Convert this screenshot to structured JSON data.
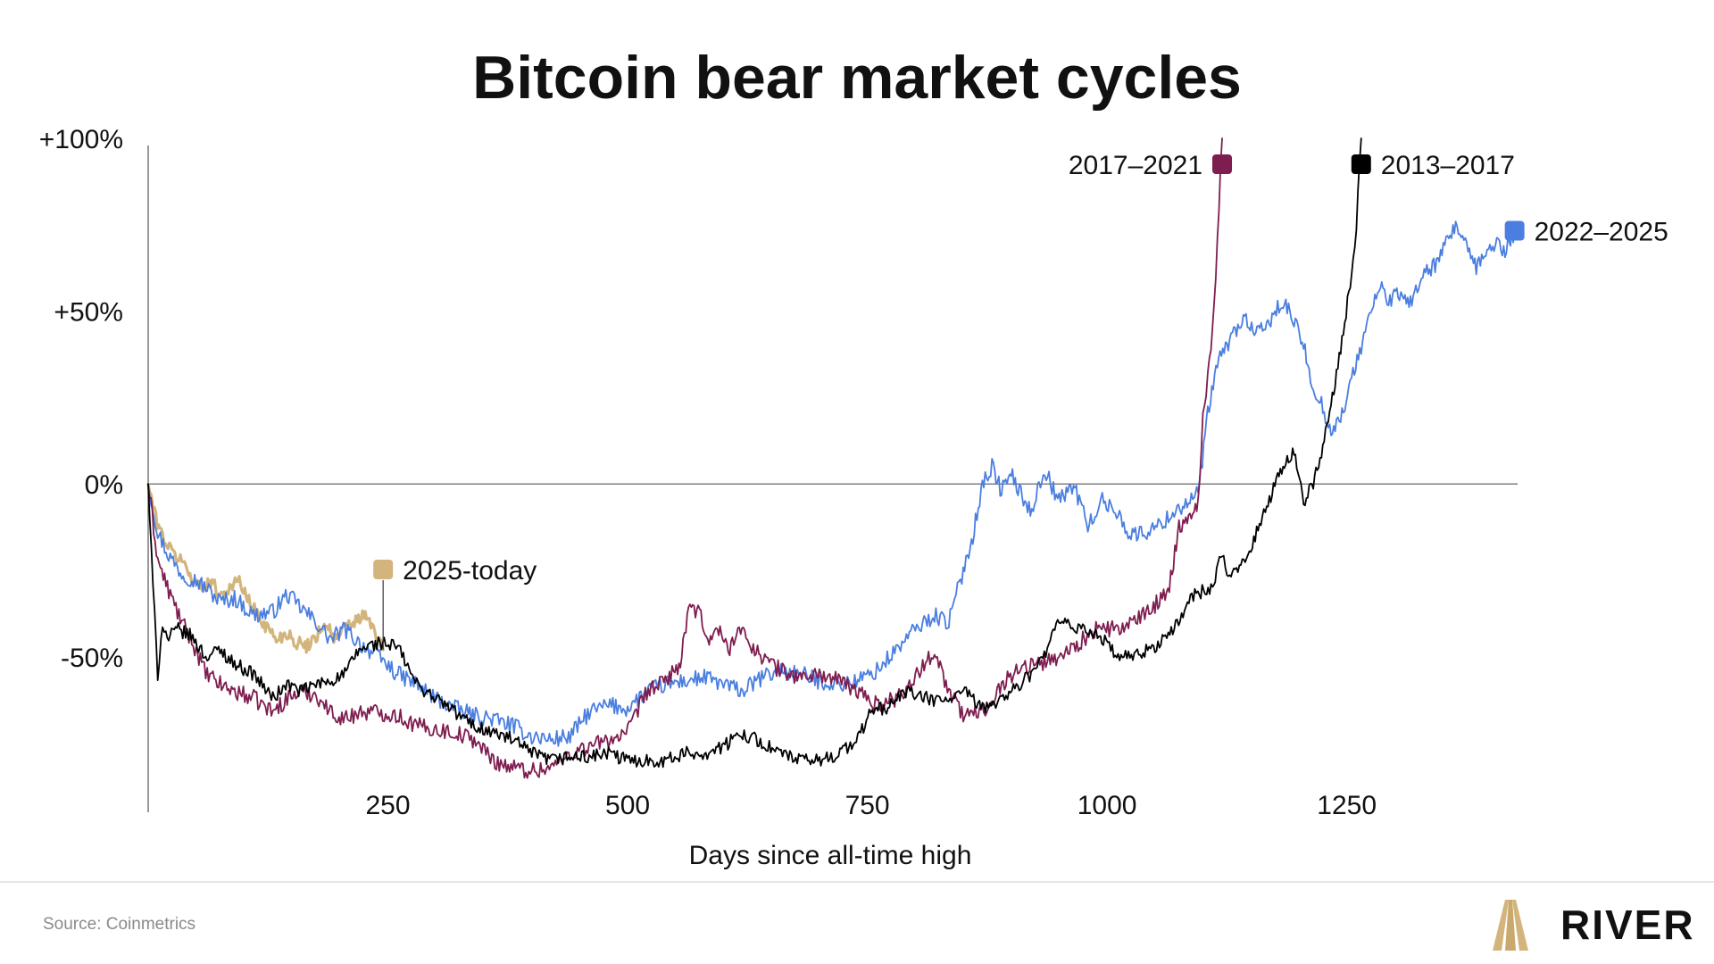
{
  "title": "Bitcoin bear market cycles",
  "source": "Source: Coinmetrics",
  "brand": {
    "name": "RIVER",
    "icon": "river-logo-icon",
    "color": "#d2b47c"
  },
  "chart_data": {
    "type": "line",
    "title": "Bitcoin bear market cycles",
    "xlabel": "Days since all-time high",
    "ylabel": "",
    "xlim": [
      0,
      1430
    ],
    "ylim": [
      -95,
      100
    ],
    "x_ticks": [
      {
        "value": 250,
        "label": "250"
      },
      {
        "value": 500,
        "label": "500"
      },
      {
        "value": 750,
        "label": "750"
      },
      {
        "value": 1000,
        "label": "1000"
      },
      {
        "value": 1250,
        "label": "1250"
      }
    ],
    "y_ticks": [
      {
        "value": 100,
        "label": "+100%"
      },
      {
        "value": 50,
        "label": "+50%"
      },
      {
        "value": 0,
        "label": "0%"
      },
      {
        "value": -50,
        "label": "-50%"
      }
    ],
    "zero_line": true,
    "grid": false,
    "legend": "direct labels at line ends",
    "series": [
      {
        "name": "2022–2025",
        "color": "#4a7ee0",
        "x": [
          0,
          10,
          20,
          35,
          50,
          60,
          75,
          90,
          110,
          130,
          145,
          160,
          175,
          190,
          205,
          220,
          240,
          260,
          280,
          300,
          320,
          340,
          360,
          380,
          400,
          420,
          440,
          460,
          480,
          500,
          520,
          540,
          560,
          580,
          600,
          620,
          640,
          660,
          680,
          700,
          720,
          740,
          760,
          780,
          800,
          820,
          835,
          850,
          860,
          870,
          880,
          890,
          900,
          910,
          920,
          935,
          950,
          965,
          980,
          995,
          1010,
          1025,
          1040,
          1055,
          1070,
          1085,
          1095,
          1105,
          1115,
          1125,
          1135,
          1145,
          1155,
          1165,
          1175,
          1185,
          1195,
          1205,
          1215,
          1225,
          1235,
          1245,
          1255,
          1265,
          1275,
          1285,
          1295,
          1305,
          1315,
          1325,
          1335,
          1345,
          1355,
          1365,
          1375,
          1385,
          1395,
          1405,
          1415,
          1425
        ],
        "y": [
          0,
          -14,
          -20,
          -26,
          -28,
          -30,
          -34,
          -33,
          -38,
          -37,
          -32,
          -36,
          -40,
          -45,
          -42,
          -46,
          -50,
          -55,
          -58,
          -62,
          -65,
          -67,
          -68,
          -70,
          -73,
          -74,
          -73,
          -66,
          -64,
          -65,
          -60,
          -58,
          -57,
          -56,
          -58,
          -60,
          -56,
          -54,
          -55,
          -57,
          -58,
          -57,
          -54,
          -48,
          -42,
          -38,
          -40,
          -25,
          -15,
          0,
          5,
          -2,
          3,
          -3,
          -8,
          4,
          -5,
          0,
          -12,
          -5,
          -8,
          -15,
          -14,
          -12,
          -8,
          -5,
          -3,
          20,
          35,
          40,
          45,
          48,
          43,
          45,
          50,
          52,
          47,
          40,
          28,
          22,
          15,
          20,
          30,
          40,
          50,
          57,
          53,
          55,
          52,
          58,
          62,
          64,
          70,
          75,
          68,
          62,
          67,
          70,
          67,
          73
        ],
        "end_label": "2022–2025"
      },
      {
        "name": "2017–2021",
        "color": "#7e1d4f",
        "x": [
          0,
          10,
          20,
          35,
          50,
          60,
          75,
          90,
          110,
          130,
          145,
          160,
          175,
          190,
          205,
          220,
          240,
          260,
          280,
          300,
          320,
          340,
          360,
          380,
          400,
          420,
          440,
          460,
          480,
          500,
          520,
          535,
          545,
          555,
          565,
          575,
          585,
          595,
          605,
          615,
          625,
          640,
          660,
          680,
          700,
          720,
          740,
          760,
          780,
          800,
          820,
          835,
          850,
          870,
          890,
          910,
          930,
          950,
          970,
          990,
          1010,
          1030,
          1050,
          1065,
          1075,
          1085,
          1095,
          1100,
          1105,
          1110,
          1115,
          1120
        ],
        "y": [
          0,
          -22,
          -30,
          -40,
          -48,
          -55,
          -58,
          -60,
          -62,
          -66,
          -62,
          -60,
          -61,
          -66,
          -68,
          -66,
          -66,
          -67,
          -70,
          -71,
          -72,
          -74,
          -80,
          -82,
          -83,
          -82,
          -78,
          -76,
          -74,
          -72,
          -60,
          -58,
          -55,
          -52,
          -35,
          -38,
          -45,
          -42,
          -48,
          -42,
          -45,
          -50,
          -54,
          -56,
          -55,
          -57,
          -60,
          -64,
          -62,
          -56,
          -48,
          -60,
          -67,
          -66,
          -58,
          -53,
          -52,
          -50,
          -46,
          -42,
          -42,
          -40,
          -35,
          -30,
          -12,
          -10,
          -5,
          20,
          30,
          45,
          70,
          100
        ],
        "end_label": "2017–2021"
      },
      {
        "name": "2013–2017",
        "color": "#000000",
        "x": [
          0,
          5,
          10,
          15,
          20,
          30,
          45,
          60,
          75,
          90,
          110,
          130,
          145,
          160,
          175,
          190,
          205,
          220,
          240,
          260,
          280,
          300,
          320,
          340,
          360,
          380,
          400,
          420,
          440,
          460,
          480,
          500,
          520,
          540,
          560,
          580,
          600,
          620,
          640,
          660,
          680,
          700,
          720,
          740,
          755,
          770,
          790,
          810,
          830,
          850,
          870,
          890,
          910,
          930,
          950,
          970,
          990,
          1010,
          1030,
          1050,
          1070,
          1090,
          1110,
          1120,
          1125,
          1135,
          1150,
          1165,
          1175,
          1185,
          1195,
          1205,
          1215,
          1225,
          1235,
          1245,
          1255,
          1260,
          1265
        ],
        "y": [
          0,
          -30,
          -55,
          -40,
          -45,
          -42,
          -44,
          -50,
          -48,
          -52,
          -55,
          -62,
          -58,
          -60,
          -58,
          -57,
          -55,
          -48,
          -46,
          -47,
          -58,
          -62,
          -66,
          -70,
          -72,
          -74,
          -78,
          -80,
          -79,
          -79,
          -78,
          -80,
          -80,
          -80,
          -78,
          -78,
          -76,
          -72,
          -75,
          -78,
          -80,
          -80,
          -78,
          -74,
          -65,
          -65,
          -60,
          -62,
          -63,
          -60,
          -65,
          -62,
          -58,
          -52,
          -40,
          -42,
          -43,
          -50,
          -50,
          -47,
          -42,
          -32,
          -30,
          -20,
          -28,
          -25,
          -18,
          -8,
          0,
          5,
          10,
          -5,
          0,
          10,
          25,
          42,
          60,
          75,
          100
        ],
        "end_label": "2013–2017"
      },
      {
        "name": "2025-today",
        "color": "#d2b47c",
        "x": [
          0,
          8,
          15,
          25,
          35,
          45,
          55,
          65,
          75,
          85,
          95,
          105,
          115,
          125,
          135,
          145,
          155,
          165,
          175,
          185,
          195,
          205,
          215,
          225,
          235,
          245
        ],
        "y": [
          0,
          -10,
          -15,
          -20,
          -22,
          -27,
          -30,
          -28,
          -32,
          -30,
          -28,
          -34,
          -38,
          -42,
          -45,
          -43,
          -46,
          -47,
          -44,
          -40,
          -45,
          -42,
          -40,
          -38,
          -42,
          -48
        ],
        "end_label": "2025-today"
      }
    ]
  }
}
